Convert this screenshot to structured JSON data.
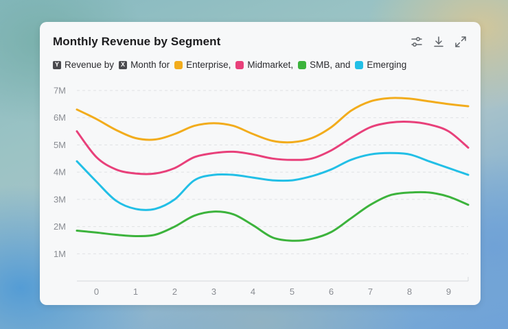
{
  "card": {
    "title": "Monthly Revenue by Segment",
    "tools": [
      "sliders-icon",
      "download-icon",
      "expand-icon"
    ]
  },
  "legend": {
    "y_key": "Y",
    "y_text": "Revenue by",
    "x_key": "X",
    "x_text": "Month for",
    "items": [
      {
        "label": "Enterprise,",
        "color": "#f2ac1c"
      },
      {
        "label": "Midmarket,",
        "color": "#e8407a"
      },
      {
        "label": "SMB, and",
        "color": "#3cb33c"
      },
      {
        "label": "Emerging",
        "color": "#22bfe6"
      }
    ]
  },
  "chart_data": {
    "type": "line",
    "title": "Monthly Revenue by Segment",
    "xlabel": "Month",
    "ylabel": "Revenue",
    "x": [
      -0.5,
      0,
      0.5,
      1,
      1.5,
      2,
      2.5,
      3,
      3.5,
      4,
      4.5,
      5,
      5.5,
      6,
      6.5,
      7,
      7.5,
      8,
      8.5,
      9,
      9.5
    ],
    "xticks": [
      0,
      1,
      2,
      3,
      4,
      5,
      6,
      7,
      8,
      9
    ],
    "xtick_labels": [
      "0",
      "1",
      "2",
      "3",
      "4",
      "5",
      "6",
      "7",
      "8",
      "9"
    ],
    "yticks": [
      1000000,
      2000000,
      3000000,
      4000000,
      5000000,
      6000000,
      7000000
    ],
    "ytick_labels": [
      "1M",
      "2M",
      "3M",
      "4M",
      "5M",
      "6M",
      "7M"
    ],
    "xlim": [
      -0.5,
      9.5
    ],
    "ylim": [
      0,
      7000000
    ],
    "grid": true,
    "series": [
      {
        "name": "Enterprise",
        "color": "#f2ac1c",
        "values": [
          6300000,
          5950000,
          5550000,
          5250000,
          5200000,
          5400000,
          5700000,
          5800000,
          5700000,
          5400000,
          5150000,
          5100000,
          5250000,
          5650000,
          6250000,
          6600000,
          6720000,
          6700000,
          6600000,
          6500000,
          6420000
        ]
      },
      {
        "name": "Midmarket",
        "color": "#e8407a",
        "values": [
          5500000,
          4550000,
          4100000,
          3950000,
          3950000,
          4150000,
          4550000,
          4700000,
          4750000,
          4650000,
          4500000,
          4450000,
          4500000,
          4800000,
          5250000,
          5650000,
          5820000,
          5850000,
          5750000,
          5500000,
          4900000
        ]
      },
      {
        "name": "SMB",
        "color": "#3cb33c",
        "values": [
          1850000,
          1780000,
          1700000,
          1650000,
          1700000,
          2000000,
          2400000,
          2550000,
          2450000,
          2050000,
          1600000,
          1480000,
          1550000,
          1800000,
          2300000,
          2800000,
          3150000,
          3250000,
          3250000,
          3100000,
          2800000
        ]
      },
      {
        "name": "Emerging",
        "color": "#22bfe6",
        "values": [
          4400000,
          3650000,
          2950000,
          2650000,
          2650000,
          3000000,
          3700000,
          3900000,
          3900000,
          3800000,
          3700000,
          3700000,
          3850000,
          4100000,
          4450000,
          4650000,
          4700000,
          4650000,
          4400000,
          4150000,
          3900000
        ]
      }
    ]
  }
}
